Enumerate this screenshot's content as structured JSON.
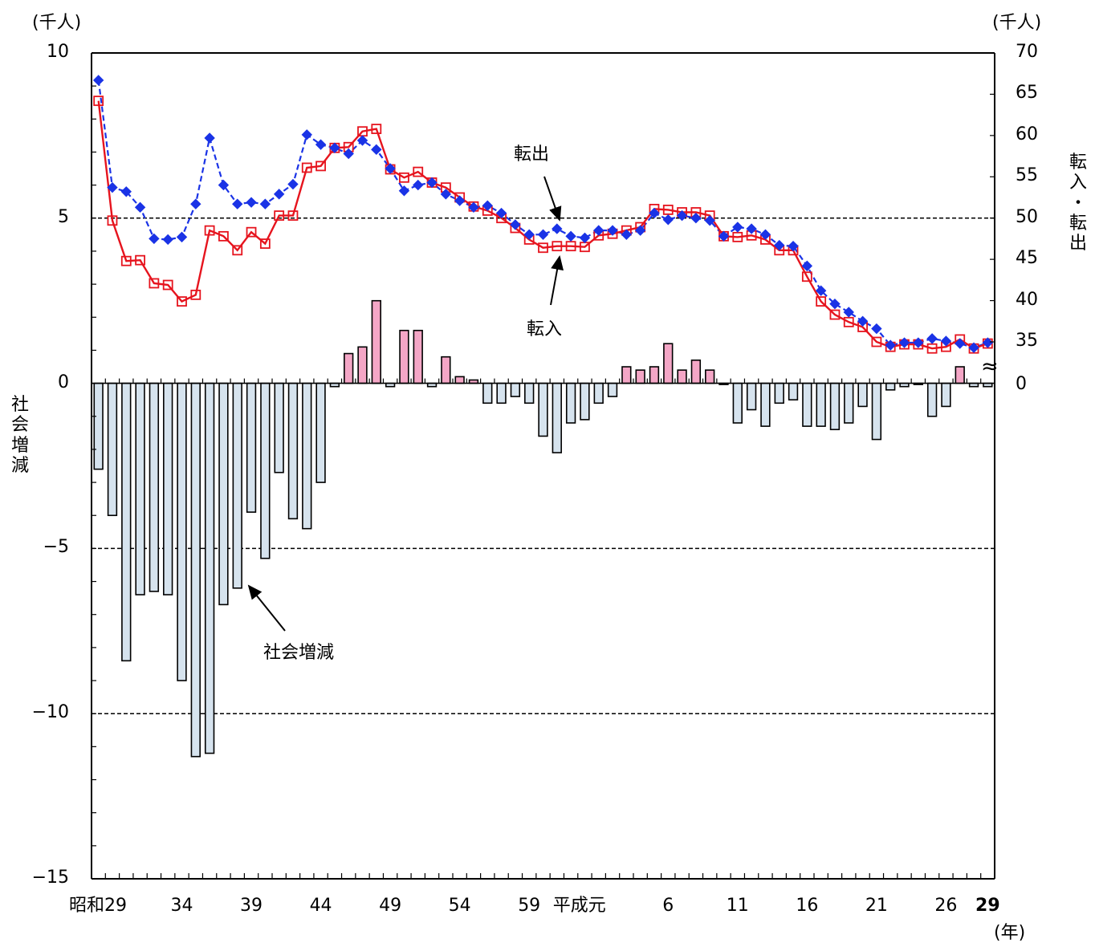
{
  "chart_data": {
    "type": "bar",
    "unit_left": "(千人)",
    "unit_right": "(千人)",
    "unit_x": "(年)",
    "ylabel_left": "社会増減",
    "ylabel_right": "転入・転出",
    "break_mark": "≈",
    "left_axis": {
      "range": [
        -15,
        10
      ],
      "ticks": [
        10,
        5,
        0,
        -5,
        -10,
        -15
      ]
    },
    "right_axis": {
      "range": [
        0,
        70
      ],
      "ticks": [
        70,
        65,
        60,
        55,
        50,
        45,
        40,
        35,
        0
      ],
      "break": true
    },
    "x_tick_labels": [
      {
        "label": "昭和29",
        "index": 1
      },
      {
        "label": "34",
        "index": 6
      },
      {
        "label": "39",
        "index": 11
      },
      {
        "label": "44",
        "index": 16
      },
      {
        "label": "49",
        "index": 21
      },
      {
        "label": "54",
        "index": 26
      },
      {
        "label": "59",
        "index": 31
      },
      {
        "label": "平成元",
        "index": 36
      },
      {
        "label": "6",
        "index": 41
      },
      {
        "label": "11",
        "index": 46
      },
      {
        "label": "16",
        "index": 51
      },
      {
        "label": "21",
        "index": 56
      },
      {
        "label": "26",
        "index": 61
      },
      {
        "label": "29",
        "index": 64
      }
    ],
    "series": [
      {
        "name": "社会増減",
        "kind": "bar",
        "positive_color": "#f4a6c6",
        "negative_color": "#d6e3ee",
        "values": [
          -2.6,
          -4.0,
          -8.4,
          -6.4,
          -6.3,
          -6.4,
          -9.0,
          -11.3,
          -11.2,
          -6.7,
          -6.2,
          -3.9,
          -5.3,
          -2.7,
          -4.1,
          -4.4,
          -3.0,
          -0.1,
          0.9,
          1.1,
          2.5,
          -0.1,
          1.6,
          1.6,
          -0.1,
          0.8,
          0.2,
          0.1,
          -0.6,
          -0.6,
          -0.4,
          -0.6,
          -1.6,
          -2.1,
          -1.2,
          -1.1,
          -0.6,
          -0.4,
          0.5,
          0.4,
          0.5,
          1.2,
          0.4,
          0.7,
          0.4,
          0.0,
          -1.2,
          -0.8,
          -1.3,
          -0.6,
          -0.5,
          -1.3,
          -1.3,
          -1.4,
          -1.2,
          -0.7,
          -1.7,
          -0.2,
          -0.1,
          0.0,
          -1.0,
          -0.7,
          0.5,
          -0.1,
          -0.1
        ]
      },
      {
        "name": "転出",
        "kind": "line",
        "color": "#1a33e6",
        "values": [
          66.7,
          53.7,
          53.2,
          51.3,
          47.5,
          47.4,
          47.7,
          51.7,
          59.7,
          54.0,
          51.7,
          51.9,
          51.7,
          52.9,
          54.1,
          60.1,
          58.9,
          58.5,
          57.8,
          59.4,
          58.3,
          56.0,
          53.3,
          54.0,
          54.3,
          52.9,
          52.1,
          51.3,
          51.5,
          50.6,
          49.2,
          48.0,
          48.0,
          48.7,
          47.8,
          47.6,
          48.5,
          48.5,
          48.0,
          48.5,
          50.6,
          49.8,
          50.3,
          50.0,
          49.7,
          47.8,
          48.9,
          48.7,
          48.0,
          46.7,
          46.6,
          44.2,
          41.2,
          39.6,
          38.6,
          37.5,
          36.6,
          34.6,
          34.9,
          34.9,
          35.4,
          35.1,
          34.8,
          34.3,
          34.9
        ]
      },
      {
        "name": "転入",
        "kind": "line",
        "color": "#e6141e",
        "values": [
          64.2,
          49.7,
          44.8,
          44.9,
          42.1,
          41.9,
          39.9,
          40.7,
          48.5,
          47.8,
          46.1,
          48.3,
          46.9,
          50.3,
          50.3,
          56.1,
          56.3,
          58.5,
          58.6,
          60.5,
          60.8,
          55.9,
          54.9,
          55.6,
          54.3,
          53.7,
          52.5,
          51.4,
          50.9,
          50.0,
          48.8,
          47.4,
          46.4,
          46.6,
          46.6,
          46.5,
          47.9,
          48.1,
          48.5,
          48.9,
          51.1,
          51.0,
          50.7,
          50.7,
          50.3,
          47.8,
          47.7,
          47.9,
          47.4,
          46.1,
          46.1,
          42.9,
          39.9,
          38.3,
          37.4,
          36.8,
          35.0,
          34.4,
          34.7,
          34.7,
          34.2,
          34.4,
          35.3,
          34.2,
          34.8
        ]
      }
    ],
    "annotations": [
      {
        "text": "転出"
      },
      {
        "text": "転入"
      },
      {
        "text": "社会増減"
      }
    ],
    "gridlines_left": [
      5,
      -5,
      -10
    ],
    "legend": "none"
  }
}
